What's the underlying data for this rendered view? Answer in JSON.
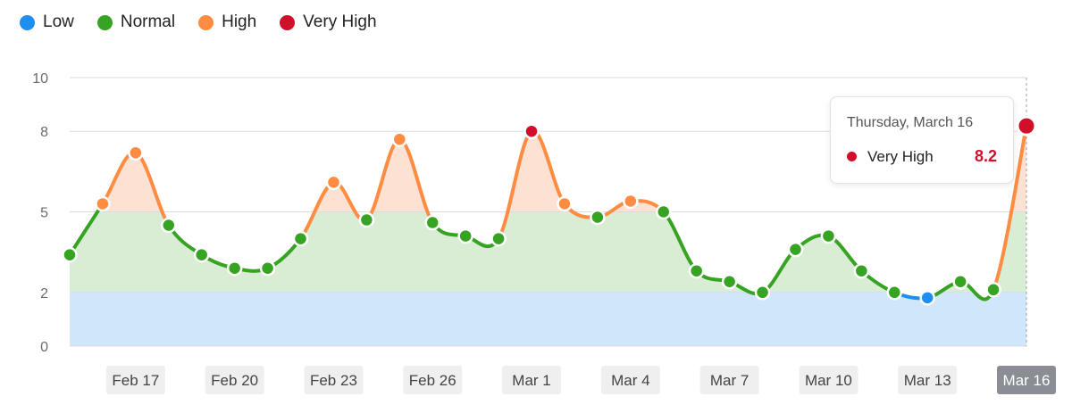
{
  "legend": [
    {
      "label": "Low",
      "color": "#1f8ef1"
    },
    {
      "label": "Normal",
      "color": "#36a323"
    },
    {
      "label": "High",
      "color": "#ff8c42"
    },
    {
      "label": "Very High",
      "color": "#d0102b"
    }
  ],
  "tooltip": {
    "date": "Thursday, March 16",
    "label": "Very High",
    "value": "8.2",
    "color": "#d0102b"
  },
  "chart_data": {
    "type": "line",
    "title": "",
    "xlabel": "",
    "ylabel": "",
    "ylim": [
      0,
      10
    ],
    "y_ticks": [
      0,
      2,
      5,
      8,
      10
    ],
    "x_ticks": [
      "Feb 17",
      "Feb 20",
      "Feb 23",
      "Feb 26",
      "Mar 1",
      "Mar 4",
      "Mar 7",
      "Mar 10",
      "Mar 13",
      "Mar 16"
    ],
    "active_x_tick": "Mar 16",
    "bands": [
      {
        "name": "Low",
        "from": 0,
        "to": 2,
        "color": "#cfe6fb"
      },
      {
        "name": "Normal",
        "from": 2,
        "to": 5,
        "color": "#d8edd3"
      },
      {
        "name": "High",
        "from": 5,
        "to": 8,
        "color": "#fde2d4"
      },
      {
        "name": "Very High",
        "from": 8,
        "to": 10,
        "color": "#fde2d4"
      }
    ],
    "x": [
      "Feb 15",
      "Feb 16",
      "Feb 17",
      "Feb 18",
      "Feb 19",
      "Feb 20",
      "Feb 21",
      "Feb 22",
      "Feb 23",
      "Feb 24",
      "Feb 25",
      "Feb 26",
      "Feb 27",
      "Feb 28",
      "Mar 1",
      "Mar 2",
      "Mar 3",
      "Mar 4",
      "Mar 5",
      "Mar 6",
      "Mar 7",
      "Mar 8",
      "Mar 9",
      "Mar 10",
      "Mar 11",
      "Mar 12",
      "Mar 13",
      "Mar 14",
      "Mar 15",
      "Mar 16"
    ],
    "values": [
      3.4,
      5.3,
      7.2,
      4.5,
      3.4,
      2.9,
      2.9,
      4.0,
      6.1,
      4.7,
      7.7,
      4.6,
      4.1,
      4.0,
      8.0,
      5.3,
      4.8,
      5.4,
      5.0,
      2.8,
      2.4,
      2.0,
      3.6,
      4.1,
      2.8,
      2.0,
      1.8,
      2.4,
      2.1,
      8.2
    ]
  }
}
